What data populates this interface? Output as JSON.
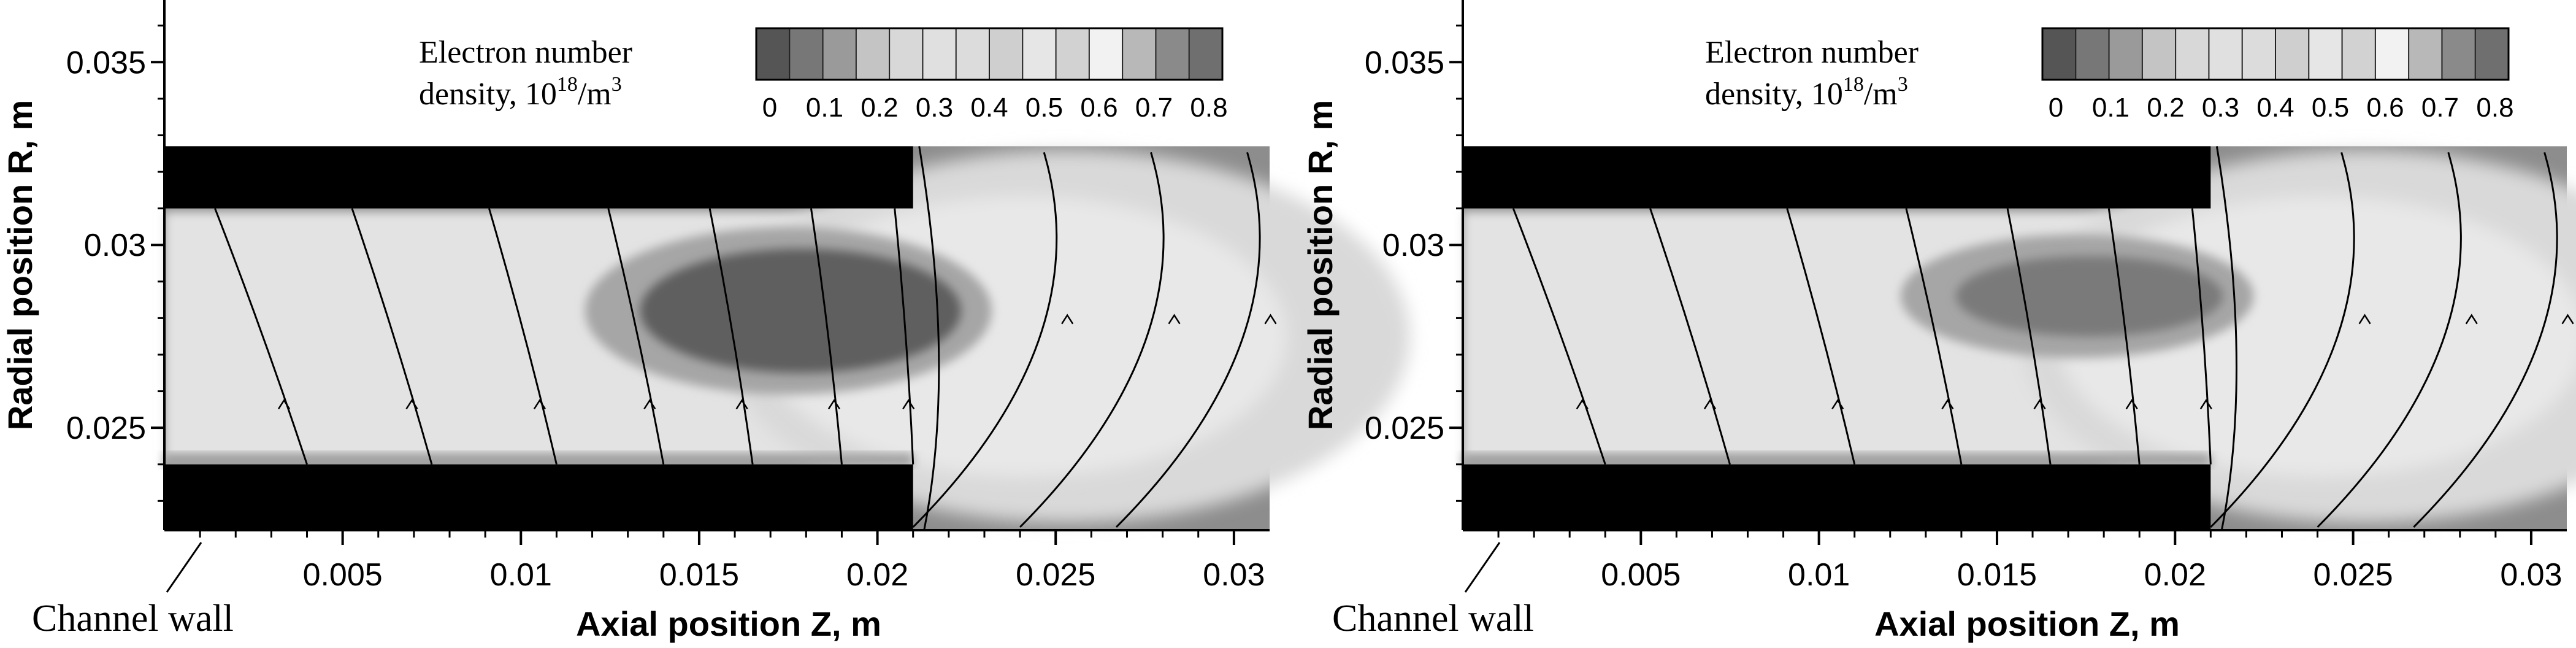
{
  "figure": {
    "panels": 2,
    "colorbar": {
      "title_line1": "Electron number",
      "title_line2_prefix": "density, 10",
      "title_exp": "18",
      "title_unit": "/m",
      "title_unit_exp": "3",
      "ticks": [
        "0",
        "0.1",
        "0.2",
        "0.3",
        "0.4",
        "0.5",
        "0.6",
        "0.7",
        "0.8"
      ],
      "colors": [
        "#555555",
        "#777777",
        "#9a9a9a",
        "#c4c4c4",
        "#d8d8d8",
        "#e0e0e0",
        "#dcdcdc",
        "#cfcfcf",
        "#e6e6e6",
        "#d2d2d2",
        "#f2f2f2",
        "#b8b8b8",
        "#8a8a8a",
        "#6f6f6f"
      ]
    },
    "channel_wall_label": "Channel wall"
  },
  "chart_data": [
    {
      "type": "heatmap",
      "title": "",
      "xlabel": "Axial position Z, m",
      "ylabel": "Radial position R, m",
      "xlim": [
        0,
        0.031
      ],
      "ylim": [
        0.0222,
        0.0367
      ],
      "xticks": [
        0.005,
        0.01,
        0.015,
        0.02,
        0.025,
        0.03
      ],
      "xtick_labels": [
        "0.005",
        "0.01",
        "0.015",
        "0.02",
        "0.025",
        "0.03"
      ],
      "yticks": [
        0.025,
        0.03,
        0.035
      ],
      "ytick_labels": [
        "0.025",
        "0.03",
        "0.035"
      ],
      "colorbar_range": [
        0,
        0.8
      ],
      "channel_wall": {
        "z_end": 0.021,
        "r_inner": 0.024,
        "r_outer": 0.031
      },
      "high_density_region": {
        "z_min": 0.013,
        "z_max": 0.022,
        "r_min": 0.0265,
        "r_max": 0.0299
      },
      "field_lines_z_at_bottom": [
        0.004,
        0.0075,
        0.011,
        0.014,
        0.0165,
        0.019,
        0.021
      ]
    },
    {
      "type": "heatmap",
      "title": "",
      "xlabel": "Axial position Z, m",
      "ylabel": "Radial position R, m",
      "xlim": [
        0,
        0.031
      ],
      "ylim": [
        0.0222,
        0.0367
      ],
      "xticks": [
        0.005,
        0.01,
        0.015,
        0.02,
        0.025,
        0.03
      ],
      "xtick_labels": [
        "0.005",
        "0.01",
        "0.015",
        "0.02",
        "0.025",
        "0.03"
      ],
      "yticks": [
        0.025,
        0.03,
        0.035
      ],
      "ytick_labels": [
        "0.025",
        "0.03",
        "0.035"
      ],
      "colorbar_range": [
        0,
        0.8
      ],
      "channel_wall": {
        "z_end": 0.021,
        "r_inner": 0.024,
        "r_outer": 0.031
      },
      "high_density_region": {
        "z_min": 0.0135,
        "z_max": 0.021,
        "r_min": 0.0275,
        "r_max": 0.0297
      },
      "field_lines_z_at_bottom": [
        0.004,
        0.0075,
        0.011,
        0.014,
        0.0165,
        0.019,
        0.021
      ]
    }
  ]
}
